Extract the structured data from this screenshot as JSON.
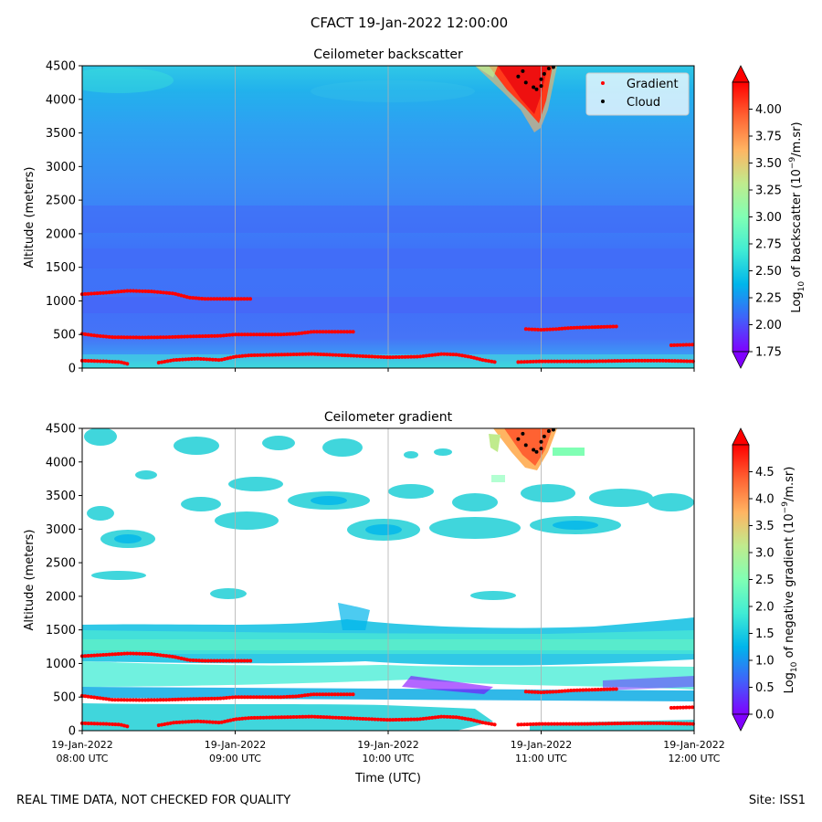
{
  "figure": {
    "suptitle": "CFACT 19-Jan-2022 12:00:00",
    "footer_left": "REAL TIME DATA, NOT CHECKED FOR QUALITY",
    "footer_right": "Site: ISS1"
  },
  "legend": {
    "gradient_label": "Gradient",
    "cloud_label": "Cloud",
    "gradient_color": "#ff0000",
    "cloud_color": "#000000"
  },
  "colors": {
    "rainbow": [
      "#8000ff",
      "#4062fa",
      "#00b5eb",
      "#40ecd4",
      "#80ffb4",
      "#c0eb8d",
      "#ffb462",
      "#ff6232",
      "#ff0000"
    ]
  },
  "chart_data": [
    {
      "type": "heatmap",
      "title": "Ceilometer backscatter",
      "ylabel": "Altitude (meters)",
      "xlabel": "",
      "ylim": [
        0,
        4500
      ],
      "xlim_hours": [
        8,
        12
      ],
      "yticks": [
        0,
        500,
        1000,
        1500,
        2000,
        2500,
        3000,
        3500,
        4000,
        4500
      ],
      "ytick_labels": [
        "0",
        "500",
        "1000",
        "1500",
        "2000",
        "2500",
        "3000",
        "3500",
        "4000",
        "4500"
      ],
      "xtick_hours": [
        9,
        10,
        11
      ],
      "grid_x": true,
      "colorbar": {
        "label_parts": [
          "Log",
          "10",
          " of backscatter (10",
          "−9",
          "/m.sr)"
        ],
        "min": 1.75,
        "max": 4.25,
        "extend": "both",
        "ticks": [
          1.75,
          2.0,
          2.25,
          2.5,
          2.75,
          3.0,
          3.25,
          3.5,
          3.75,
          4.0
        ],
        "tick_labels": [
          "1.75",
          "2.00",
          "2.25",
          "2.50",
          "2.75",
          "3.00",
          "3.25",
          "3.50",
          "3.75",
          "4.00"
        ]
      },
      "legend_position": "top-right",
      "gradient_series": [
        [
          [
            8.0,
            1100
          ],
          [
            8.15,
            1120
          ],
          [
            8.3,
            1150
          ],
          [
            8.45,
            1140
          ],
          [
            8.6,
            1110
          ],
          [
            8.7,
            1050
          ],
          [
            8.8,
            1030
          ],
          [
            9.1,
            1030
          ]
        ],
        [
          [
            8.0,
            510
          ],
          [
            8.1,
            480
          ],
          [
            8.2,
            460
          ],
          [
            8.4,
            455
          ],
          [
            8.55,
            460
          ],
          [
            8.7,
            470
          ],
          [
            8.9,
            480
          ],
          [
            9.0,
            500
          ],
          [
            9.3,
            500
          ],
          [
            9.4,
            510
          ],
          [
            9.5,
            540
          ],
          [
            9.78,
            540
          ]
        ],
        [
          [
            8.0,
            110
          ],
          [
            8.15,
            100
          ],
          [
            8.25,
            90
          ],
          [
            8.3,
            60
          ]
        ],
        [
          [
            8.5,
            80
          ],
          [
            8.6,
            120
          ],
          [
            8.75,
            140
          ],
          [
            8.9,
            120
          ],
          [
            9.0,
            170
          ],
          [
            9.1,
            190
          ],
          [
            9.3,
            200
          ],
          [
            9.5,
            210
          ],
          [
            9.7,
            190
          ],
          [
            10.0,
            160
          ],
          [
            10.2,
            170
          ],
          [
            10.35,
            210
          ],
          [
            10.45,
            200
          ],
          [
            10.55,
            160
          ],
          [
            10.62,
            120
          ],
          [
            10.7,
            90
          ]
        ],
        [
          [
            10.85,
            90
          ],
          [
            11.0,
            100
          ],
          [
            11.3,
            100
          ],
          [
            11.6,
            110
          ],
          [
            11.8,
            110
          ],
          [
            12.0,
            100
          ]
        ],
        [
          [
            10.9,
            580
          ],
          [
            11.0,
            570
          ],
          [
            11.1,
            580
          ],
          [
            11.2,
            600
          ],
          [
            11.5,
            620
          ]
        ],
        [
          [
            11.85,
            340
          ],
          [
            12.0,
            350
          ]
        ]
      ],
      "cloud_points": [
        [
          10.85,
          4340
        ],
        [
          10.9,
          4250
        ],
        [
          10.95,
          4180
        ],
        [
          10.97,
          4150
        ],
        [
          11.0,
          4300
        ],
        [
          11.02,
          4380
        ],
        [
          10.88,
          4420
        ],
        [
          11.05,
          4460
        ],
        [
          11.08,
          4480
        ],
        [
          11.0,
          4200
        ]
      ]
    },
    {
      "type": "heatmap",
      "title": "Ceilometer gradient",
      "ylabel": "Altitude (meters)",
      "xlabel": "Time (UTC)",
      "ylim": [
        0,
        4500
      ],
      "xlim_hours": [
        8,
        12
      ],
      "yticks": [
        0,
        500,
        1000,
        1500,
        2000,
        2500,
        3000,
        3500,
        4000,
        4500
      ],
      "ytick_labels": [
        "0",
        "500",
        "1000",
        "1500",
        "2000",
        "2500",
        "3000",
        "3500",
        "4000",
        "4500"
      ],
      "xticks": [
        {
          "date": "19-Jan-2022",
          "time": "08:00 UTC"
        },
        {
          "date": "19-Jan-2022",
          "time": "09:00 UTC"
        },
        {
          "date": "19-Jan-2022",
          "time": "10:00 UTC"
        },
        {
          "date": "19-Jan-2022",
          "time": "11:00 UTC"
        },
        {
          "date": "19-Jan-2022",
          "time": "12:00 UTC"
        }
      ],
      "grid_x": true,
      "colorbar": {
        "label_parts": [
          "Log",
          "10",
          " of negative gradient (10",
          "−9",
          "/m.sr)"
        ],
        "min": 0.0,
        "max": 5.0,
        "extend": "both",
        "ticks": [
          0.0,
          0.5,
          1.0,
          1.5,
          2.0,
          2.5,
          3.0,
          3.5,
          4.0,
          4.5
        ],
        "tick_labels": [
          "0.0",
          "0.5",
          "1.0",
          "1.5",
          "2.0",
          "2.5",
          "3.0",
          "3.5",
          "4.0",
          "4.5"
        ]
      },
      "gradient_series": [
        [
          [
            8.0,
            1110
          ],
          [
            8.15,
            1130
          ],
          [
            8.3,
            1150
          ],
          [
            8.45,
            1140
          ],
          [
            8.6,
            1100
          ],
          [
            8.7,
            1050
          ],
          [
            8.8,
            1040
          ],
          [
            9.1,
            1040
          ]
        ],
        [
          [
            8.0,
            520
          ],
          [
            8.1,
            490
          ],
          [
            8.2,
            460
          ],
          [
            8.4,
            455
          ],
          [
            8.55,
            460
          ],
          [
            8.7,
            470
          ],
          [
            8.9,
            480
          ],
          [
            9.0,
            500
          ],
          [
            9.3,
            500
          ],
          [
            9.4,
            510
          ],
          [
            9.5,
            540
          ],
          [
            9.78,
            540
          ]
        ],
        [
          [
            8.0,
            110
          ],
          [
            8.15,
            100
          ],
          [
            8.25,
            90
          ],
          [
            8.3,
            60
          ]
        ],
        [
          [
            8.5,
            80
          ],
          [
            8.6,
            120
          ],
          [
            8.75,
            140
          ],
          [
            8.9,
            120
          ],
          [
            9.0,
            170
          ],
          [
            9.1,
            190
          ],
          [
            9.3,
            200
          ],
          [
            9.5,
            210
          ],
          [
            9.7,
            190
          ],
          [
            10.0,
            160
          ],
          [
            10.2,
            170
          ],
          [
            10.35,
            210
          ],
          [
            10.45,
            200
          ],
          [
            10.55,
            160
          ],
          [
            10.62,
            120
          ],
          [
            10.7,
            90
          ]
        ],
        [
          [
            10.85,
            90
          ],
          [
            11.0,
            100
          ],
          [
            11.3,
            100
          ],
          [
            11.6,
            110
          ],
          [
            11.8,
            110
          ],
          [
            12.0,
            100
          ]
        ],
        [
          [
            10.9,
            580
          ],
          [
            11.0,
            570
          ],
          [
            11.1,
            580
          ],
          [
            11.2,
            600
          ],
          [
            11.5,
            620
          ]
        ],
        [
          [
            11.85,
            340
          ],
          [
            12.0,
            350
          ]
        ]
      ],
      "cloud_points": [
        [
          10.85,
          4340
        ],
        [
          10.9,
          4250
        ],
        [
          10.95,
          4180
        ],
        [
          10.97,
          4150
        ],
        [
          11.0,
          4300
        ],
        [
          11.02,
          4380
        ],
        [
          10.88,
          4420
        ],
        [
          11.05,
          4460
        ],
        [
          11.08,
          4480
        ],
        [
          11.0,
          4200
        ]
      ]
    }
  ]
}
